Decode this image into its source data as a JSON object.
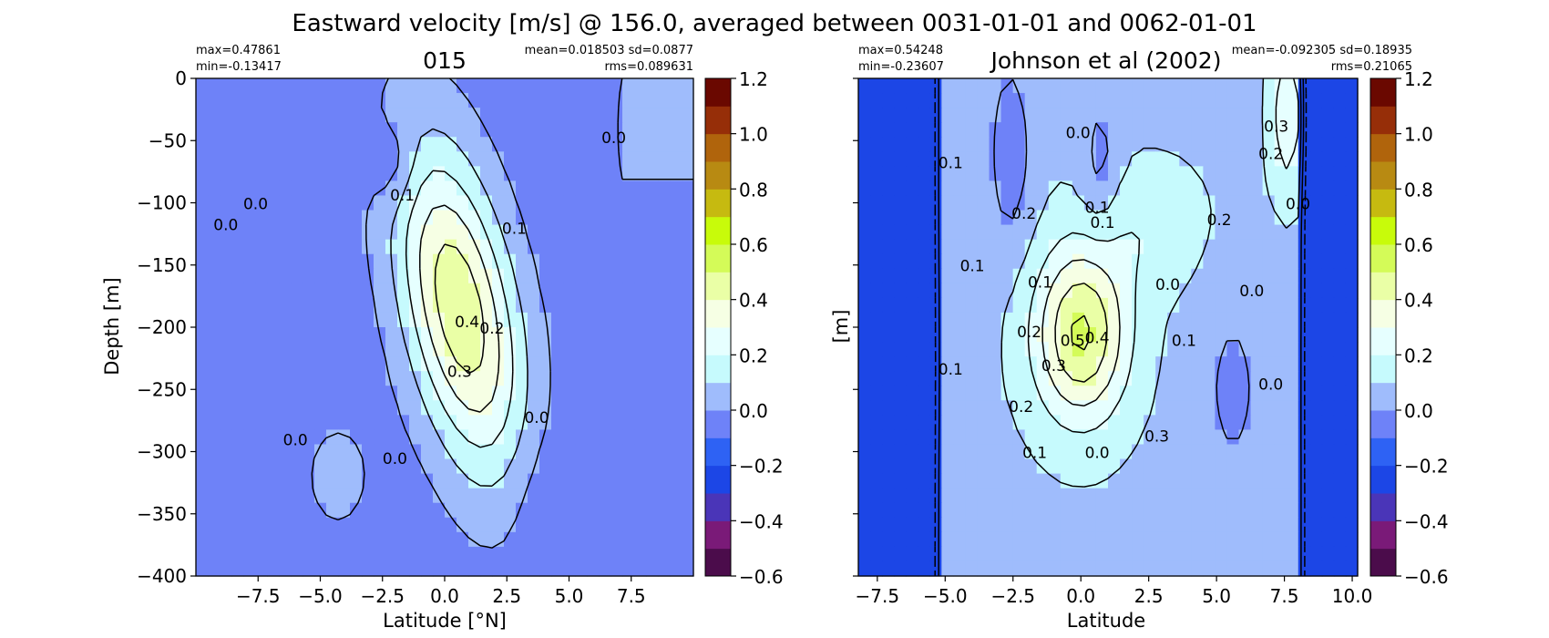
{
  "figure": {
    "title": "Eastward velocity [m/s] @ 156.0, averaged between 0031-01-01 and 0062-01-01"
  },
  "colors": {
    "levels": [
      -0.6,
      -0.5,
      -0.4,
      -0.3,
      -0.2,
      -0.1,
      0.0,
      0.1,
      0.2,
      0.3,
      0.4,
      0.5,
      0.6,
      0.7,
      0.8,
      0.9,
      1.0,
      1.1,
      1.2
    ],
    "bins": [
      "#4b0c4b",
      "#7a1a78",
      "#4a35b8",
      "#1c46e6",
      "#2e62f4",
      "#6e82f8",
      "#9fbcfc",
      "#c6fafd",
      "#e6ffff",
      "#f6ffe4",
      "#eaffa6",
      "#d4fb58",
      "#c8fb0a",
      "#c6ba10",
      "#b88a12",
      "#b0640c",
      "#962e08",
      "#6a0800"
    ],
    "contour": "#000000"
  },
  "chart_data": [
    {
      "type": "heatmap",
      "title": "015",
      "xlabel": "Latitude [°N]",
      "ylabel": "Depth [m]",
      "xlim": [
        -10,
        10
      ],
      "ylim": [
        -400,
        0
      ],
      "xticks": [
        -7.5,
        -5.0,
        -2.5,
        0.0,
        2.5,
        5.0,
        7.5
      ],
      "yticks": [
        0,
        -50,
        -100,
        -150,
        -200,
        -250,
        -300,
        -350,
        -400
      ],
      "stats_left": [
        "max=0.47861",
        "min=-0.13417"
      ],
      "stats_right": [
        "mean=0.018503 sd=0.0877",
        "rms=0.089631"
      ],
      "field": {
        "background": -0.05,
        "features": [
          {
            "kind": "core",
            "lat": 0.6,
            "depth": -185,
            "amp": 0.53,
            "wlat": 2.2,
            "wdepth": 130,
            "tilt": -0.009
          },
          {
            "kind": "core",
            "lat": -2.0,
            "depth": -70,
            "amp": -0.11,
            "wlat": 0.9,
            "wdepth": 35
          },
          {
            "kind": "core",
            "lat": 3.8,
            "depth": -340,
            "amp": -0.06,
            "wlat": 1.4,
            "wdepth": 70
          },
          {
            "kind": "core",
            "lat": -4.3,
            "depth": -320,
            "amp": 0.07,
            "wlat": 1.8,
            "wdepth": 60
          },
          {
            "kind": "band",
            "lat_from": 7.0,
            "lat_to": 10,
            "depth": -40,
            "amp": 0.08,
            "wdepth": 60
          }
        ]
      },
      "contour_levels": [
        -0.1,
        0.0,
        0.1,
        0.2,
        0.3,
        0.4
      ],
      "contour_labels": [
        {
          "text": "0.0",
          "lat": -8.8,
          "depth": -122
        },
        {
          "text": "0.0",
          "lat": -7.6,
          "depth": -105
        },
        {
          "text": "0.1",
          "lat": -1.7,
          "depth": -98
        },
        {
          "text": "0.0",
          "lat": 6.8,
          "depth": -52
        },
        {
          "text": "0.1",
          "lat": 2.8,
          "depth": -125
        },
        {
          "text": "0.4",
          "lat": 0.9,
          "depth": -200
        },
        {
          "text": "0.2",
          "lat": 1.9,
          "depth": -205
        },
        {
          "text": "0.3",
          "lat": 0.6,
          "depth": -240
        },
        {
          "text": "0.0",
          "lat": 3.7,
          "depth": -277
        },
        {
          "text": "0.0",
          "lat": -6.0,
          "depth": -295
        },
        {
          "text": "0.0",
          "lat": -2.0,
          "depth": -310
        }
      ]
    },
    {
      "type": "heatmap",
      "title": "Johnson et al (2002)",
      "xlabel": "Latitude",
      "ylabel": "[m]",
      "xlim": [
        -8.2,
        10.2
      ],
      "ylim": [
        -400,
        0
      ],
      "xticks": [
        -7.5,
        -5.0,
        -2.5,
        0.0,
        2.5,
        5.0,
        7.5,
        10.0
      ],
      "yticks": [
        0,
        -50,
        -100,
        -150,
        -200,
        -250,
        -300,
        -350,
        -400
      ],
      "stats_left": [
        "max=0.54248",
        "min=-0.23607"
      ],
      "stats_right": [
        "mean=-0.092305 sd=0.18935",
        "rms=0.21065"
      ],
      "masked_value": -0.25,
      "data_extent": {
        "lat_min": -5.2,
        "lat_max": 8.2
      },
      "field": {
        "background": 0.08,
        "features": [
          {
            "kind": "core",
            "lat": 0.0,
            "depth": -205,
            "amp": 0.44,
            "wlat": 1.7,
            "wdepth": 70
          },
          {
            "kind": "core",
            "lat": -2.6,
            "depth": -60,
            "amp": -0.14,
            "wlat": 0.8,
            "wdepth": 80
          },
          {
            "kind": "core",
            "lat": 0.7,
            "depth": -70,
            "amp": -0.12,
            "wlat": 0.7,
            "wdepth": 60
          },
          {
            "kind": "core",
            "lat": 5.6,
            "depth": -250,
            "amp": -0.1,
            "wlat": 1.3,
            "wdepth": 90
          },
          {
            "kind": "core",
            "lat": -4.6,
            "depth": -230,
            "amp": -0.05,
            "wlat": 0.6,
            "wdepth": 90
          },
          {
            "kind": "core",
            "lat": 7.6,
            "depth": -30,
            "amp": 0.2,
            "wlat": 0.6,
            "wdepth": 60
          },
          {
            "kind": "core",
            "lat": 2.5,
            "depth": -120,
            "amp": 0.1,
            "wlat": 2.0,
            "wdepth": 50
          }
        ]
      },
      "contour_levels": [
        -0.1,
        0.0,
        0.1,
        0.2,
        0.3,
        0.4,
        0.5
      ],
      "contour_labels": [
        {
          "text": "0.1",
          "lat": -4.8,
          "depth": -72
        },
        {
          "text": "0.0",
          "lat": -0.1,
          "depth": -48
        },
        {
          "text": "0.3",
          "lat": 7.2,
          "depth": -43
        },
        {
          "text": "0.2",
          "lat": 7.0,
          "depth": -65
        },
        {
          "text": "0.0",
          "lat": 8.0,
          "depth": -105
        },
        {
          "text": "0.1",
          "lat": 0.6,
          "depth": -108
        },
        {
          "text": "0.2",
          "lat": -2.1,
          "depth": -113
        },
        {
          "text": "0.1",
          "lat": 0.8,
          "depth": -120
        },
        {
          "text": "0.2",
          "lat": 5.1,
          "depth": -118
        },
        {
          "text": "0.1",
          "lat": -4.0,
          "depth": -155
        },
        {
          "text": "0.1",
          "lat": -1.5,
          "depth": -168
        },
        {
          "text": "0.0",
          "lat": 6.3,
          "depth": -175
        },
        {
          "text": "0.0",
          "lat": 3.2,
          "depth": -170
        },
        {
          "text": "0.2",
          "lat": -1.9,
          "depth": -208
        },
        {
          "text": "0.5",
          "lat": -0.3,
          "depth": -215
        },
        {
          "text": "0.4",
          "lat": 0.6,
          "depth": -213
        },
        {
          "text": "0.3",
          "lat": -1.0,
          "depth": -235
        },
        {
          "text": "0.1",
          "lat": 3.8,
          "depth": -215
        },
        {
          "text": "0.1",
          "lat": -4.8,
          "depth": -238
        },
        {
          "text": "0.0",
          "lat": 7.0,
          "depth": -250
        },
        {
          "text": "0.2",
          "lat": -2.2,
          "depth": -268
        },
        {
          "text": "0.1",
          "lat": -1.7,
          "depth": -305
        },
        {
          "text": "0.3",
          "lat": 2.8,
          "depth": -292
        },
        {
          "text": "0.0",
          "lat": 0.6,
          "depth": -305
        }
      ]
    }
  ],
  "colorbar": {
    "ticks": [
      "1.2",
      "1.0",
      "0.8",
      "0.6",
      "0.4",
      "0.2",
      "0.0",
      "−0.2",
      "−0.4",
      "−0.6"
    ]
  }
}
